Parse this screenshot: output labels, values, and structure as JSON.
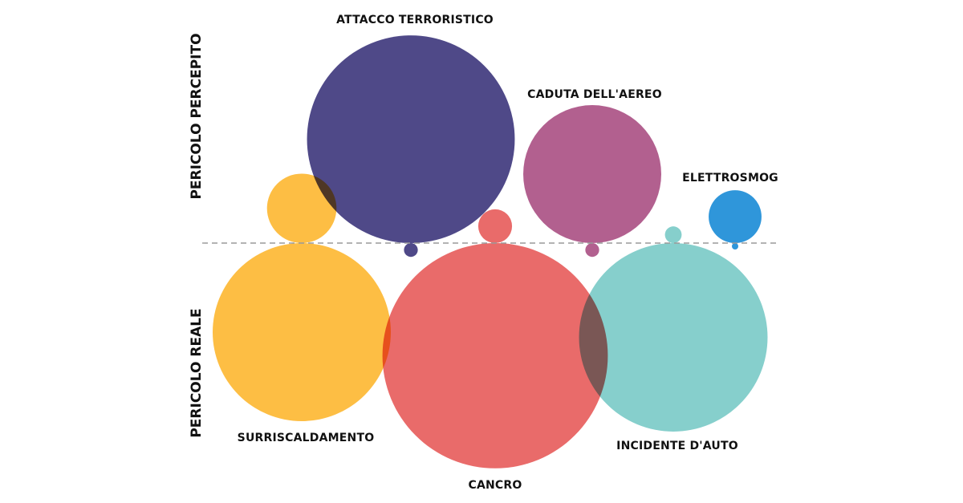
{
  "chart_data": {
    "type": "bubble",
    "axis_labels": {
      "upper": "PERICOLO PERCEPITO",
      "lower": "PERICOLO REALE"
    },
    "colors": {
      "surriscaldamento": "#FDBE44",
      "attacco_terroristico": "#4F4988",
      "cancro": "#E96B6A",
      "caduta_aereo": "#B2608F",
      "incidente_auto": "#86CFCC",
      "elettrosmog": "#2F96DA",
      "divider": "#9A9A9A"
    },
    "series": [
      {
        "key": "attacco_terroristico",
        "label": "ATTACCO TERRORISTICO",
        "perceived": 34,
        "real": 0.15
      },
      {
        "key": "caduta_aereo",
        "label": "CADUTA DELL'AEREO",
        "perceived": 15,
        "real": 0.15
      },
      {
        "key": "elettrosmog",
        "label": "ELETTROSMOG",
        "perceived": 2.2,
        "real": 0.02
      },
      {
        "key": "surriscaldamento",
        "label": "SURRISCALDAMENTO",
        "perceived": 3.8,
        "real": 25
      },
      {
        "key": "cancro",
        "label": "CANCRO",
        "perceived": 0.9,
        "real": 40
      },
      {
        "key": "incidente_auto",
        "label": "INCIDENTE  D'AUTO",
        "perceived": 0.22,
        "real": 28
      }
    ]
  }
}
